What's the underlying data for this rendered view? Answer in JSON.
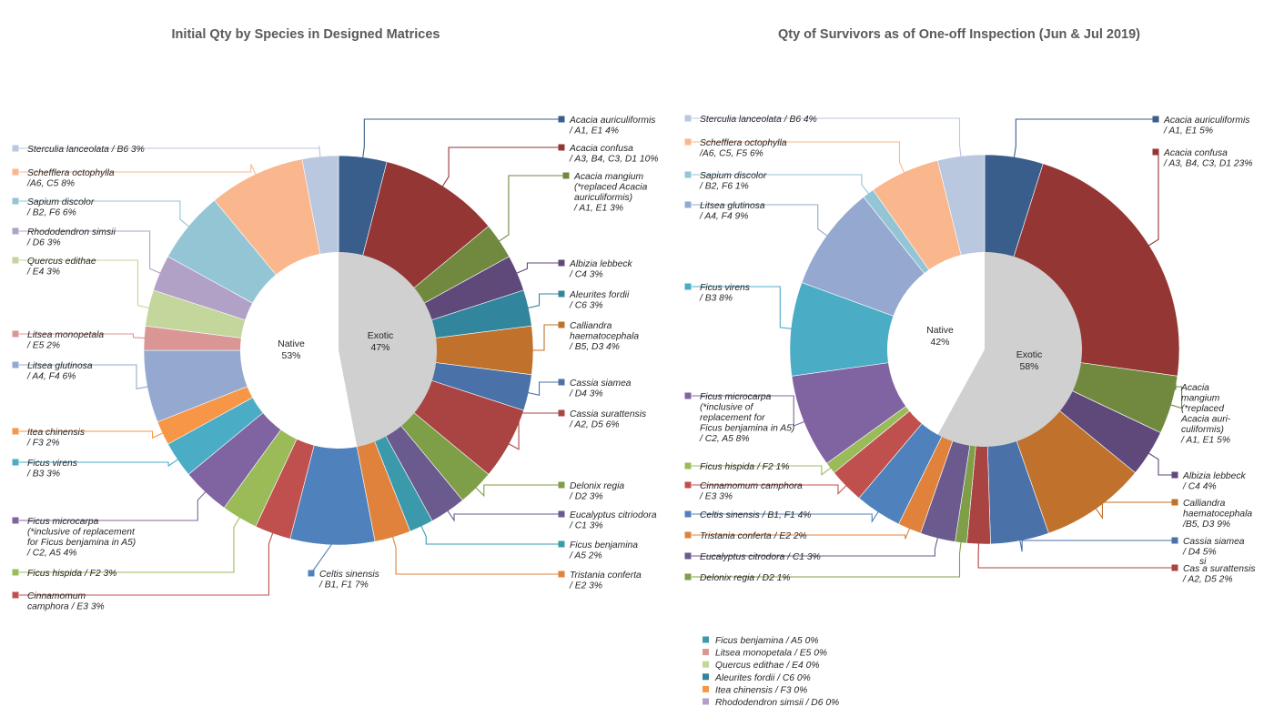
{
  "chart_data": [
    {
      "type": "pie",
      "title": "Initial Qty by Species in Designed Matrices",
      "inner": [
        {
          "name": "Exotic",
          "value": 47,
          "pct": "47%",
          "color": "#d0d0d0"
        },
        {
          "name": "Native",
          "value": 53,
          "pct": "53%",
          "color": "#ffffff"
        }
      ],
      "slices": [
        {
          "lines": [
            "Acacia auriculiformis",
            "/ A1, E1  4%"
          ],
          "value": 4,
          "color": "#3a5e8c"
        },
        {
          "lines": [
            "Acacia confusa",
            "/ A3, B4, C3, D1  10%"
          ],
          "value": 10,
          "color": "#943634"
        },
        {
          "lines": [
            "Acacia mangium",
            "(*replaced Acacia",
            "auriculiformis)",
            "/ A1, E1  3%"
          ],
          "value": 3,
          "color": "#71893f"
        },
        {
          "lines": [
            "Albizia lebbeck",
            "/ C4  3%"
          ],
          "value": 3,
          "color": "#5f497a"
        },
        {
          "lines": [
            "Aleurites fordii",
            "/ C6  3%"
          ],
          "value": 3,
          "color": "#31859c"
        },
        {
          "lines": [
            "Calliandra",
            "haematocephala",
            "/ B5, D3  4%"
          ],
          "value": 4,
          "color": "#c0712b"
        },
        {
          "lines": [
            "Cassia siamea",
            "/ D4  3%"
          ],
          "value": 3,
          "color": "#4a72a8"
        },
        {
          "lines": [
            "Cassia surattensis",
            "/ A2, D5  6%"
          ],
          "value": 6,
          "color": "#a94442"
        },
        {
          "lines": [
            "Delonix regia",
            "/ D2  3%"
          ],
          "value": 3,
          "color": "#7f9e48"
        },
        {
          "lines": [
            "Eucalyptus citriodora",
            "/ C1  3%"
          ],
          "value": 3,
          "color": "#6b5a8e"
        },
        {
          "lines": [
            "Ficus benjamina",
            "/ A5  2%"
          ],
          "value": 2,
          "color": "#3a9aab"
        },
        {
          "lines": [
            "Tristania conferta",
            "/ E2  3%"
          ],
          "value": 3,
          "color": "#e0823c"
        },
        {
          "lines": [
            "Celtis sinensis",
            "/ B1, F1  7%"
          ],
          "value": 7,
          "color": "#4f81bd"
        },
        {
          "lines": [
            "Cinnamomum",
            "camphora / E3  3%"
          ],
          "value": 3,
          "color": "#c0504d"
        },
        {
          "lines": [
            "Ficus hispida / F2  3%"
          ],
          "value": 3,
          "color": "#9bbb59"
        },
        {
          "lines": [
            "Ficus microcarpa",
            "(*inclusive of replacement",
            "for Ficus benjamina in A5)",
            "/ C2, A5  4%"
          ],
          "value": 4,
          "color": "#8064a2"
        },
        {
          "lines": [
            "Ficus virens",
            "/ B3  3%"
          ],
          "value": 3,
          "color": "#4bacc6"
        },
        {
          "lines": [
            "Itea chinensis",
            "/ F3  2%"
          ],
          "value": 2,
          "color": "#f79646"
        },
        {
          "lines": [
            "Litsea glutinosa",
            "/ A4, F4  6%"
          ],
          "value": 6,
          "color": "#95a9d0"
        },
        {
          "lines": [
            "Litsea monopetala",
            "/ E5  2%"
          ],
          "value": 2,
          "color": "#d99694"
        },
        {
          "lines": [
            "Quercus edithae",
            "/ E4  3%"
          ],
          "value": 3,
          "color": "#c3d69b"
        },
        {
          "lines": [
            "Rhododendron simsii",
            "/ D6  3%"
          ],
          "value": 3,
          "color": "#b2a1c7"
        },
        {
          "lines": [
            "Sapium discolor",
            "/ B2, F6  6%"
          ],
          "value": 6,
          "color": "#93c5d5"
        },
        {
          "lines": [
            "Schefflera octophylla",
            "/A6, C5  8%"
          ],
          "value": 8,
          "color": "#fab68c"
        },
        {
          "lines": [
            "Sterculia lanceolata / B6  3%"
          ],
          "value": 3,
          "color": "#b9c7df"
        }
      ]
    },
    {
      "type": "pie",
      "title": "Qty of Survivors as of One-off Inspection (Jun & Jul 2019)",
      "inner": [
        {
          "name": "Exotic",
          "value": 58,
          "pct": "58%",
          "color": "#d0d0d0"
        },
        {
          "name": "Native",
          "value": 42,
          "pct": "42%",
          "color": "#ffffff"
        }
      ],
      "slices": [
        {
          "lines": [
            "Acacia auriculiformis",
            "/ A1, E1  5%"
          ],
          "value": 5,
          "color": "#3a5e8c"
        },
        {
          "lines": [
            "Acacia confusa",
            "/ A3, B4, C3, D1  23%"
          ],
          "value": 23,
          "color": "#943634"
        },
        {
          "lines": [
            "Acacia",
            "mangium",
            "(*replaced",
            "Acacia auri-",
            "culiformis)",
            "/ A1, E1  5%"
          ],
          "value": 5,
          "color": "#71893f"
        },
        {
          "lines": [
            "Albizia lebbeck",
            "/ C4  4%"
          ],
          "value": 4,
          "color": "#5f497a"
        },
        {
          "lines": [
            "Calliandra",
            "haematocephala",
            "/B5, D3  9%"
          ],
          "value": 9,
          "color": "#c0712b"
        },
        {
          "lines": [
            "Cassia siamea",
            "/ D4 5%"
          ],
          "value": 5,
          "color": "#4a72a8"
        },
        {
          "lines": [
            "Cas  a surattensis",
            "/ A2, D5 2%"
          ],
          "value": 2,
          "color": "#a94442"
        },
        {
          "lines": [
            "Delonix regia / D2  1%"
          ],
          "value": 1,
          "color": "#7f9e48"
        },
        {
          "lines": [
            "Eucalyptus citrodora / C1  3%"
          ],
          "value": 3,
          "color": "#6b5a8e"
        },
        {
          "lines": [
            "Tristania conferta / E2  2%"
          ],
          "value": 2,
          "color": "#e0823c"
        },
        {
          "lines": [
            "Celtis sinensis / B1, F1  4%"
          ],
          "value": 4,
          "color": "#4f81bd"
        },
        {
          "lines": [
            "Cinnamomum camphora",
            "/ E3  3%"
          ],
          "value": 3,
          "color": "#c0504d"
        },
        {
          "lines": [
            "Ficus hispida / F2  1%"
          ],
          "value": 1,
          "color": "#9bbb59"
        },
        {
          "lines": [
            "Ficus microcarpa",
            "(*inclusive of",
            "replacement for",
            "Ficus benjamina in A5)",
            "/ C2, A5  8%"
          ],
          "value": 8,
          "color": "#8064a2"
        },
        {
          "lines": [
            "Ficus virens",
            "/ B3  8%"
          ],
          "value": 8,
          "color": "#4bacc6"
        },
        {
          "lines": [
            "Litsea glutinosa",
            "/ A4, F4  9%"
          ],
          "value": 9,
          "color": "#95a9d0"
        },
        {
          "lines": [
            "Sapium discolor",
            "/ B2, F6  1%"
          ],
          "value": 1,
          "color": "#93c5d5"
        },
        {
          "lines": [
            "Schefflera octophylla",
            "/A6, C5, F5  6%"
          ],
          "value": 6,
          "color": "#fab68c"
        },
        {
          "lines": [
            "Sterculia lanceolata / B6  4%"
          ],
          "value": 4,
          "color": "#b9c7df"
        }
      ],
      "zero_legend": [
        {
          "label": "Ficus benjamina / A5  0%",
          "color": "#3a9aab"
        },
        {
          "label": "Litsea monopetala / E5  0%",
          "color": "#d99694"
        },
        {
          "label": "Quercus edithae / E4  0%",
          "color": "#c3d69b"
        },
        {
          "label": "Aleurites fordii / C6  0%",
          "color": "#31859c"
        },
        {
          "label": "Itea chinensis / F3  0%",
          "color": "#f79646"
        },
        {
          "label": "Rhododendron simsii / D6  0%",
          "color": "#b2a1c7"
        }
      ],
      "overlap_glyph": "si"
    }
  ]
}
